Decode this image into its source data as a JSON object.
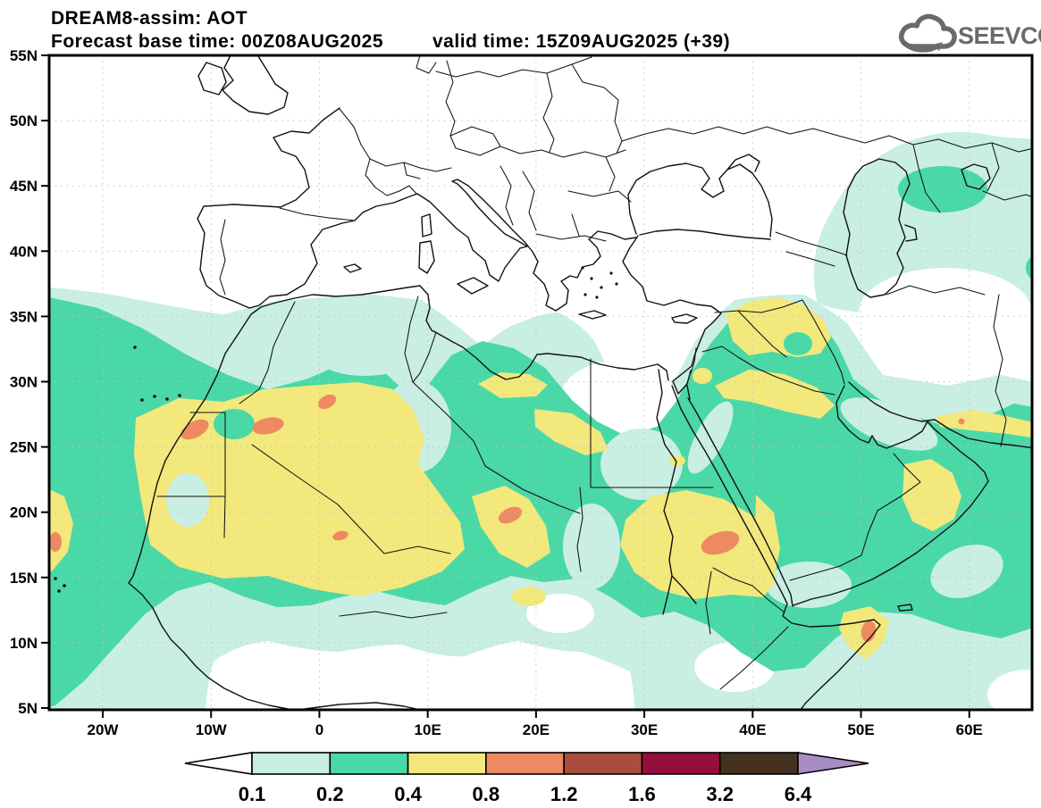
{
  "header": {
    "line1": "DREAM8-assim: AOT",
    "line2_left": "Forecast base time: 00Z08AUG2025",
    "line2_right": "valid time: 15Z09AUG2025 (+39)"
  },
  "logo": {
    "text": "SEEVCCC",
    "icon": "cloud-arrow-icon"
  },
  "axes": {
    "lat_ticks": [
      "55N",
      "50N",
      "45N",
      "40N",
      "35N",
      "30N",
      "25N",
      "20N",
      "15N",
      "10N",
      "5N"
    ],
    "lon_ticks": [
      "20W",
      "10W",
      "0",
      "10E",
      "20E",
      "30E",
      "40E",
      "50E",
      "60E"
    ]
  },
  "legend": {
    "values": [
      "0.1",
      "0.2",
      "0.4",
      "0.8",
      "1.2",
      "1.6",
      "3.2",
      "6.4"
    ],
    "cell_colors": [
      "#ffffff",
      "#c9eee3",
      "#4ad8a6",
      "#f2e87c",
      "#ee8a61",
      "#a94e3d",
      "#940f3d",
      "#45311f",
      "#a88cc6"
    ]
  },
  "palette": {
    "level_0p1": "#c9eee3",
    "level_0p2": "#4ad8a6",
    "level_0p4": "#f2e87c",
    "level_0p8": "#ee8a61",
    "level_1p2": "#a94e3d",
    "level_1p6": "#940f3d",
    "level_3p2": "#45311f",
    "level_6p4": "#a88cc6",
    "coastline": "#111111",
    "graticule": "#c2c2c2",
    "logo_gray": "#6a6a6a"
  },
  "map_data": {
    "type": "filled-contour-map",
    "model": "DREAM8-assim",
    "variable": "AOT",
    "base_time": "00Z08AUG2025",
    "valid_time": "15Z09AUG2025 (+39)",
    "lat_range": [
      "5N",
      "55N"
    ],
    "lon_range": [
      "25W",
      "65E"
    ],
    "contour_levels": [
      0.1,
      0.2,
      0.4,
      0.8,
      1.2,
      1.6,
      3.2,
      6.4
    ],
    "aot_regions": [
      {
        "area": "Sahara belt, West Africa to Red Sea (~12N-33N)",
        "level": "0.2-0.4 widespread"
      },
      {
        "area": "Western Sahara / Mauritania / SW Algeria / N Mali",
        "level": "0.4-0.8 band, 0.8-1.2 cores near 26N 12W, 26N 5W, 29N 1E, 18N 2E"
      },
      {
        "area": "Tibesti, Chad (~20N 17E)",
        "level": "0.4-0.8 patch with 0.8-1.2 core"
      },
      {
        "area": "Sudan / Eritrea (~17N 37E)",
        "level": "0.4-0.8 area with 0.8-1.2 core"
      },
      {
        "area": "N Saudi Arabia / Iraq / Jordan",
        "level": "0.4-0.8 patches"
      },
      {
        "area": "Oman and Gulf of Oman / Makran coast",
        "level": "0.4-0.8"
      },
      {
        "area": "NE Somalia, Cape Guardafui (~11N 51E)",
        "level": "0.4-0.8 with 0.8-1.2 core"
      },
      {
        "area": "Arabian Peninsula and Arabian Sea",
        "level": "0.2-0.4"
      },
      {
        "area": "Caspian Sea surroundings",
        "level": "0.1-0.2 with 0.2-0.4 patch NE of Caspian"
      },
      {
        "area": "Europe",
        "level": "below 0.1 (clear)"
      }
    ]
  }
}
